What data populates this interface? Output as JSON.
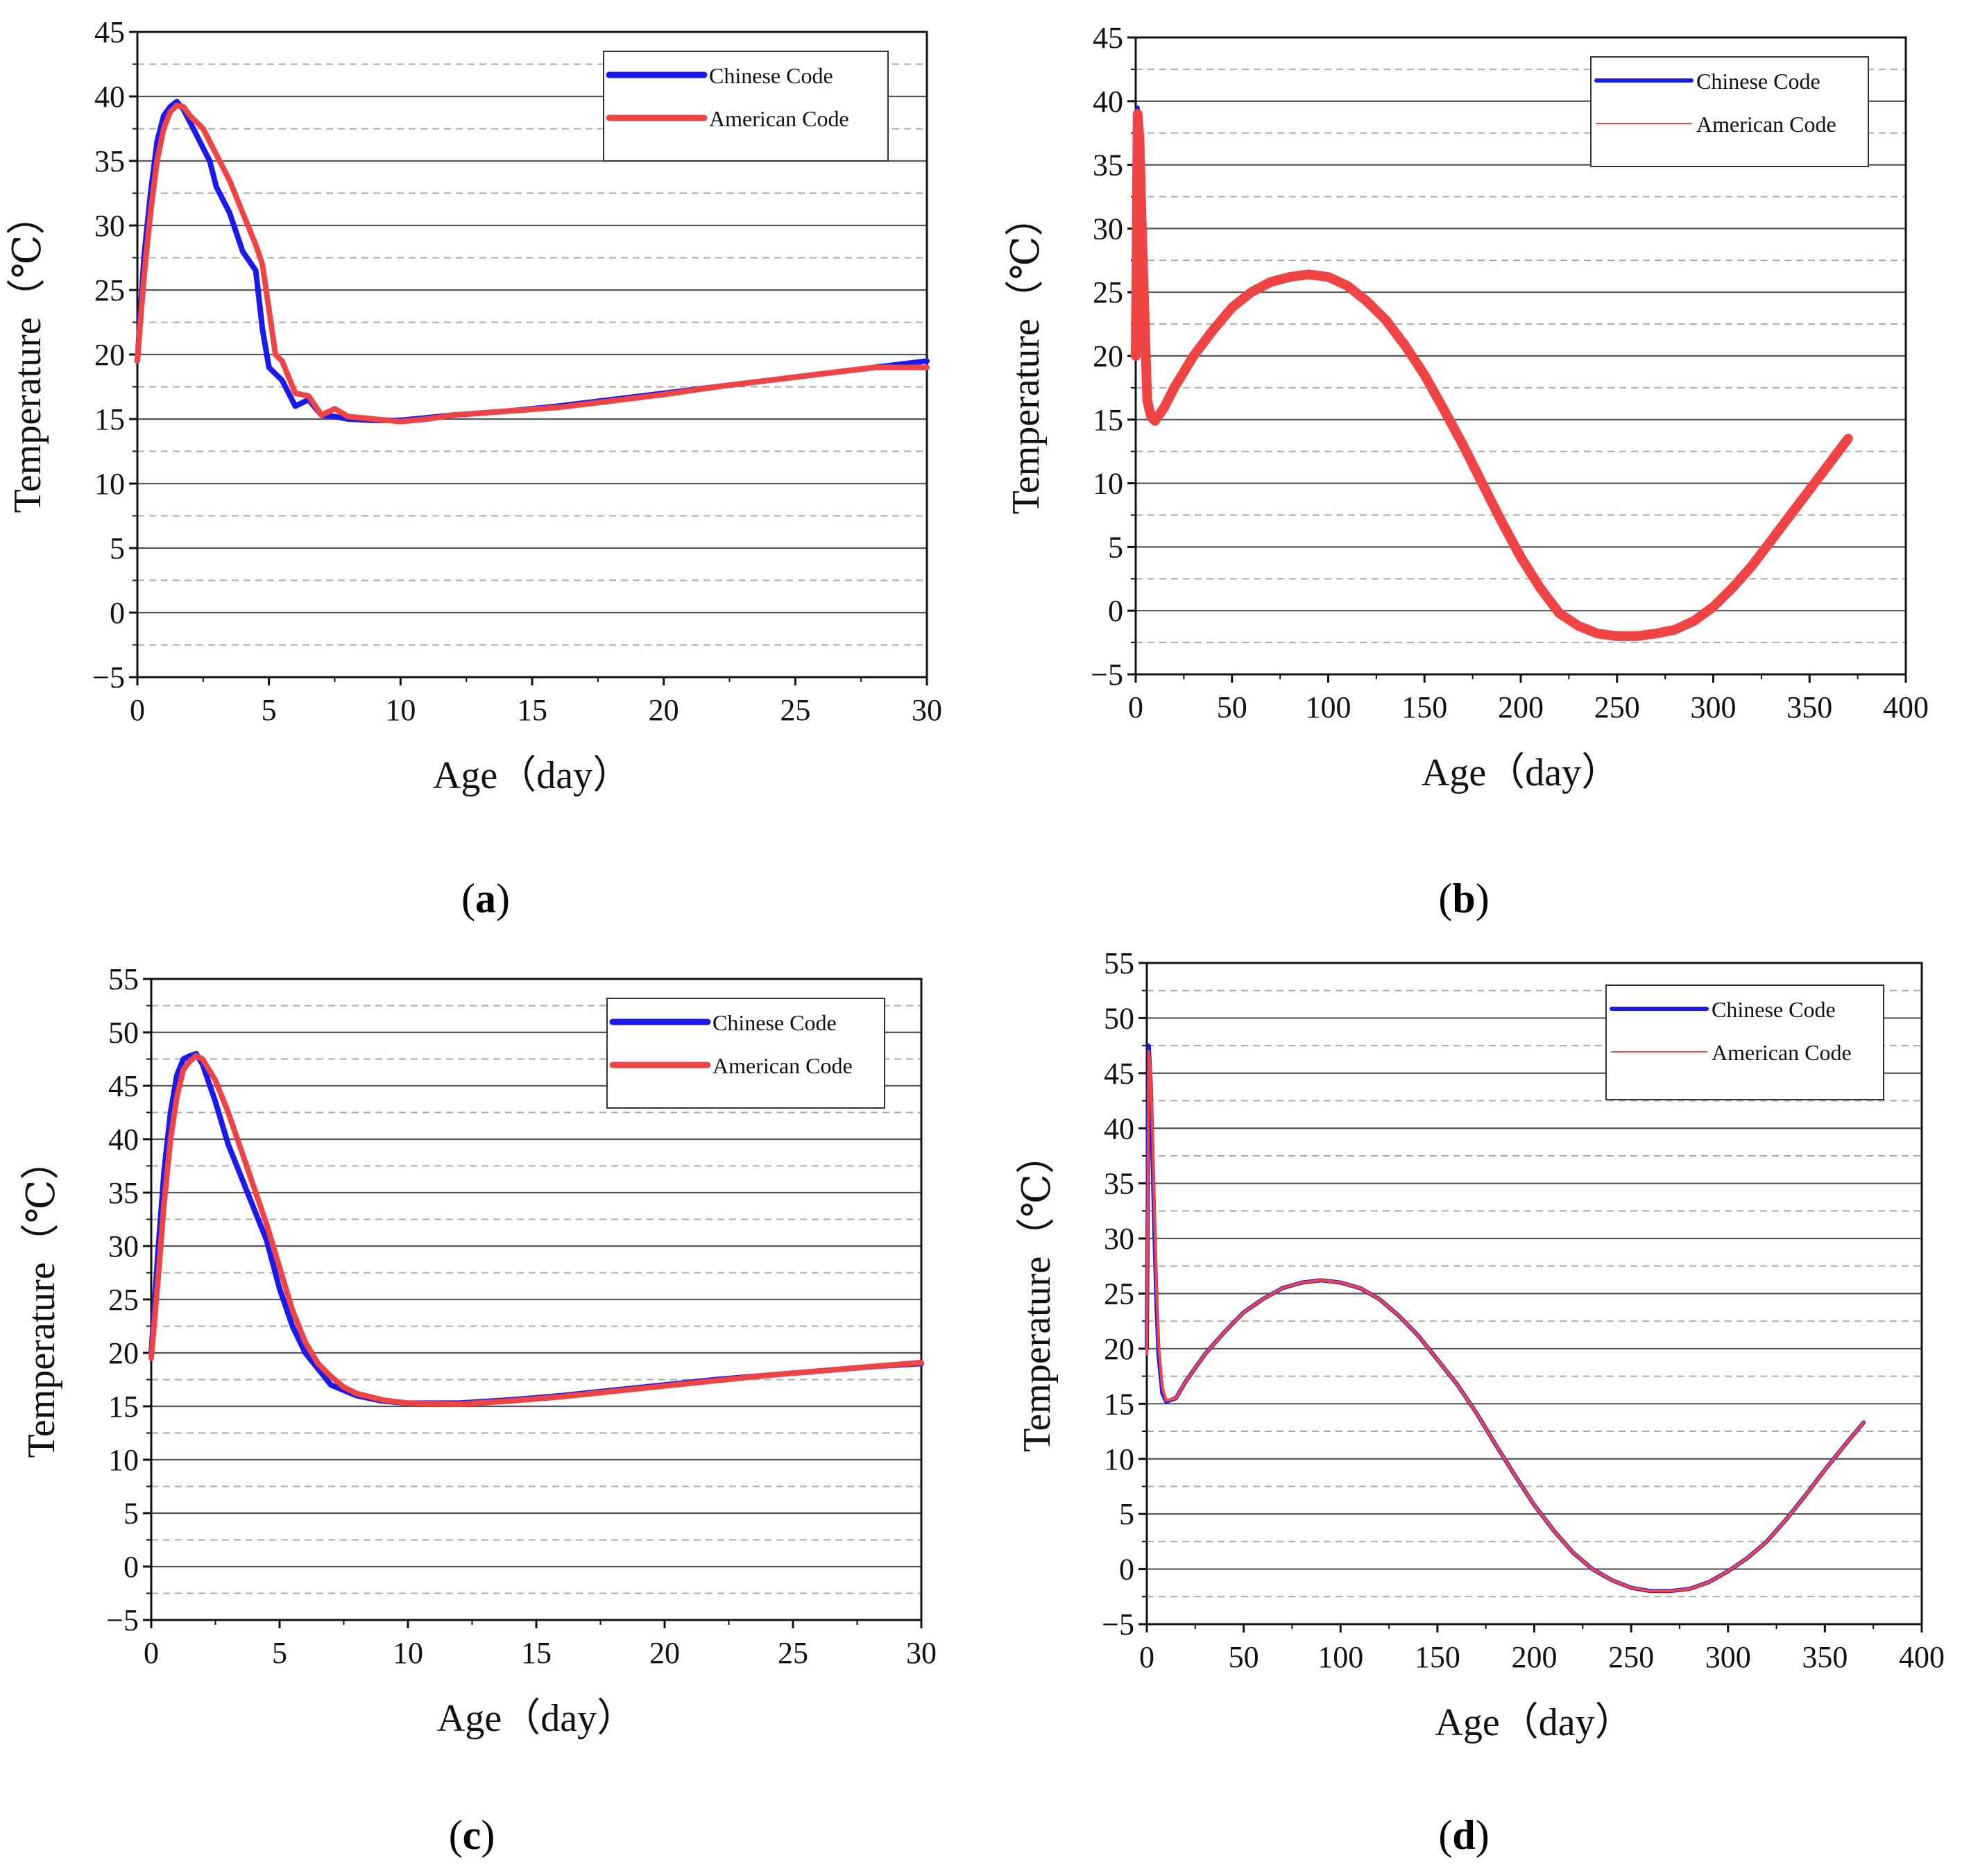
{
  "figure": {
    "colors": {
      "chinese": "#1a1aee",
      "american": "#f04444",
      "grid_solid": "#555555",
      "grid_dashed": "#aaaaaa",
      "axis": "#111111"
    }
  },
  "chart_data": [
    {
      "id": "a",
      "type": "line",
      "panel_label": "a",
      "xlabel": "Age（day）",
      "ylabel": "Temperature（℃）",
      "xlim": [
        0,
        30
      ],
      "ylim": [
        -5,
        45
      ],
      "x_ticks": [
        0,
        5,
        10,
        15,
        20,
        25,
        30
      ],
      "y_ticks": [
        -5,
        0,
        5,
        10,
        15,
        20,
        25,
        30,
        35,
        40,
        45
      ],
      "x_tick_labels": [
        "0",
        "5",
        "10",
        "15",
        "20",
        "25",
        "30"
      ],
      "y_tick_labels": [
        "−5",
        "0",
        "5",
        "10",
        "15",
        "20",
        "25",
        "30",
        "35",
        "40",
        "45"
      ],
      "legend": [
        "Chinese Code",
        "American Code"
      ],
      "legend_position": "top-right",
      "series": [
        {
          "name": "Chinese Code",
          "x": [
            0,
            0.25,
            0.5,
            0.75,
            1.0,
            1.25,
            1.5,
            1.75,
            2.0,
            2.25,
            2.5,
            2.75,
            3.0,
            3.5,
            4.0,
            4.5,
            4.75,
            5.0,
            5.5,
            6.0,
            6.5,
            7.0,
            7.5,
            8.0,
            9.0,
            10.0,
            11.0,
            12.0,
            14.0,
            16.0,
            18.0,
            20.0,
            22.0,
            24.0,
            26.0,
            28.0,
            30.0
          ],
          "y": [
            19.5,
            27.5,
            32.5,
            36.5,
            38.5,
            39.2,
            39.6,
            39.0,
            38.0,
            37.0,
            36.0,
            35.0,
            33.0,
            31.0,
            28.0,
            26.5,
            22.0,
            19.0,
            18.0,
            16.0,
            16.5,
            15.3,
            15.2,
            15.0,
            14.9,
            14.9,
            15.1,
            15.3,
            15.6,
            16.0,
            16.5,
            17.0,
            17.5,
            18.0,
            18.5,
            19.0,
            19.5
          ]
        },
        {
          "name": "American Code",
          "x": [
            0,
            0.25,
            0.5,
            0.75,
            1.0,
            1.25,
            1.5,
            1.75,
            2.0,
            2.5,
            3.0,
            3.5,
            4.0,
            4.5,
            4.75,
            5.0,
            5.25,
            5.5,
            6.0,
            6.5,
            7.0,
            7.5,
            8.0,
            9.0,
            10.0,
            11.0,
            12.0,
            14.0,
            16.0,
            18.0,
            20.0,
            22.0,
            24.0,
            26.0,
            28.0,
            30.0
          ],
          "y": [
            19.5,
            26.0,
            31.0,
            35.0,
            37.5,
            38.8,
            39.3,
            39.2,
            38.5,
            37.5,
            35.5,
            33.5,
            31.0,
            28.5,
            27.0,
            23.5,
            20.0,
            19.5,
            17.0,
            16.8,
            15.3,
            15.8,
            15.2,
            15.0,
            14.8,
            15.0,
            15.3,
            15.6,
            15.9,
            16.4,
            16.9,
            17.5,
            18.0,
            18.5,
            19.0,
            19.0
          ]
        }
      ]
    },
    {
      "id": "b",
      "type": "line",
      "panel_label": "b",
      "xlabel": "Age（day）",
      "ylabel": "Temperature（℃）",
      "xlim": [
        0,
        400
      ],
      "ylim": [
        -5,
        45
      ],
      "x_ticks": [
        0,
        50,
        100,
        150,
        200,
        250,
        300,
        350,
        400
      ],
      "y_ticks": [
        -5,
        0,
        5,
        10,
        15,
        20,
        25,
        30,
        35,
        40,
        45
      ],
      "x_tick_labels": [
        "0",
        "50",
        "100",
        "150",
        "200",
        "250",
        "300",
        "350",
        "400"
      ],
      "y_tick_labels": [
        "−5",
        "0",
        "5",
        "10",
        "15",
        "20",
        "25",
        "30",
        "35",
        "40",
        "45"
      ],
      "legend": [
        "Chinese Code",
        "American Code"
      ],
      "legend_position": "top-right",
      "series": [
        {
          "name": "Chinese Code",
          "x": [
            0,
            1,
            2,
            3,
            4,
            5,
            6,
            8,
            10,
            15,
            20,
            30,
            40,
            50,
            60,
            70,
            80,
            90,
            100,
            110,
            120,
            130,
            140,
            150,
            160,
            170,
            180,
            190,
            200,
            210,
            220,
            230,
            240,
            250,
            260,
            270,
            280,
            290,
            300,
            310,
            320,
            330,
            340,
            350,
            360,
            370
          ],
          "y": [
            20.0,
            39.5,
            36.0,
            30.0,
            25.0,
            20.0,
            16.0,
            15.2,
            15.0,
            16.0,
            17.5,
            20.0,
            22.0,
            23.8,
            25.0,
            25.8,
            26.2,
            26.4,
            26.2,
            25.5,
            24.3,
            22.8,
            20.8,
            18.5,
            15.8,
            13.0,
            10.0,
            7.0,
            4.2,
            1.8,
            -0.2,
            -1.2,
            -1.8,
            -2.0,
            -2.0,
            -1.8,
            -1.5,
            -0.8,
            0.3,
            1.8,
            3.5,
            5.5,
            7.5,
            9.5,
            11.5,
            13.5
          ]
        },
        {
          "name": "American Code",
          "x": [
            0,
            1,
            2,
            3,
            4,
            5,
            6,
            8,
            10,
            15,
            20,
            30,
            40,
            50,
            60,
            70,
            80,
            90,
            100,
            110,
            120,
            130,
            140,
            150,
            160,
            170,
            180,
            190,
            200,
            210,
            220,
            230,
            240,
            250,
            260,
            270,
            280,
            290,
            300,
            310,
            320,
            330,
            340,
            350,
            360,
            370
          ],
          "y": [
            20.0,
            39.0,
            37.0,
            31.0,
            26.0,
            21.0,
            16.5,
            15.2,
            14.9,
            16.0,
            17.5,
            20.0,
            22.0,
            23.8,
            25.0,
            25.8,
            26.2,
            26.4,
            26.2,
            25.5,
            24.3,
            22.8,
            20.8,
            18.5,
            15.8,
            13.0,
            10.0,
            7.0,
            4.2,
            1.8,
            -0.2,
            -1.2,
            -1.8,
            -2.0,
            -2.0,
            -1.8,
            -1.5,
            -0.8,
            0.3,
            1.8,
            3.5,
            5.5,
            7.5,
            9.5,
            11.5,
            13.5
          ]
        }
      ]
    },
    {
      "id": "c",
      "type": "line",
      "panel_label": "c",
      "xlabel": "Age（day）",
      "ylabel": "Temperature（℃）",
      "xlim": [
        0,
        30
      ],
      "ylim": [
        -5,
        55
      ],
      "x_ticks": [
        0,
        5,
        10,
        15,
        20,
        25,
        30
      ],
      "y_ticks": [
        -5,
        0,
        5,
        10,
        15,
        20,
        25,
        30,
        35,
        40,
        45,
        50,
        55
      ],
      "x_tick_labels": [
        "0",
        "5",
        "10",
        "15",
        "20",
        "25",
        "30"
      ],
      "y_tick_labels": [
        "−5",
        "0",
        "5",
        "10",
        "15",
        "20",
        "25",
        "30",
        "35",
        "40",
        "45",
        "50",
        "55"
      ],
      "legend": [
        "Chinese Code",
        "American Code"
      ],
      "legend_position": "top-right",
      "series": [
        {
          "name": "Chinese Code",
          "x": [
            0,
            0.25,
            0.5,
            0.75,
            1.0,
            1.25,
            1.5,
            1.75,
            2.0,
            2.5,
            3.0,
            3.5,
            4.0,
            4.5,
            5.0,
            5.5,
            6.0,
            6.5,
            7.0,
            7.5,
            8.0,
            9.0,
            10.0,
            12.0,
            14.0,
            16.0,
            18.0,
            20.0,
            22.0,
            24.0,
            26.0,
            28.0,
            30.0
          ],
          "y": [
            20.0,
            29.0,
            37.0,
            42.5,
            46.0,
            47.5,
            47.8,
            48.0,
            47.0,
            43.5,
            39.5,
            36.5,
            33.5,
            30.5,
            26.0,
            22.5,
            20.0,
            18.5,
            17.0,
            16.5,
            16.0,
            15.5,
            15.3,
            15.3,
            15.6,
            16.0,
            16.5,
            17.0,
            17.5,
            17.9,
            18.3,
            18.7,
            19.0
          ]
        },
        {
          "name": "American Code",
          "x": [
            0,
            0.25,
            0.5,
            0.75,
            1.0,
            1.25,
            1.5,
            1.75,
            2.0,
            2.5,
            3.0,
            3.5,
            4.0,
            4.5,
            5.0,
            5.5,
            6.0,
            6.5,
            7.0,
            7.5,
            8.0,
            9.0,
            10.0,
            12.0,
            14.0,
            16.0,
            18.0,
            20.0,
            22.0,
            24.0,
            26.0,
            28.0,
            30.0
          ],
          "y": [
            19.5,
            26.5,
            34.0,
            40.0,
            44.0,
            46.5,
            47.3,
            47.8,
            47.5,
            45.5,
            42.5,
            39.0,
            35.5,
            32.0,
            28.0,
            24.0,
            21.0,
            19.0,
            17.8,
            16.8,
            16.2,
            15.6,
            15.3,
            15.2,
            15.5,
            15.9,
            16.4,
            16.9,
            17.4,
            17.9,
            18.3,
            18.7,
            19.1
          ]
        }
      ]
    },
    {
      "id": "d",
      "type": "line",
      "panel_label": "d",
      "xlabel": "Age（day）",
      "ylabel": "Temperature（℃）",
      "xlim": [
        0,
        400
      ],
      "ylim": [
        -5,
        55
      ],
      "x_ticks": [
        0,
        50,
        100,
        150,
        200,
        250,
        300,
        350,
        400
      ],
      "y_ticks": [
        -5,
        0,
        5,
        10,
        15,
        20,
        25,
        30,
        35,
        40,
        45,
        50,
        55
      ],
      "x_tick_labels": [
        "0",
        "50",
        "100",
        "150",
        "200",
        "250",
        "300",
        "350",
        "400"
      ],
      "y_tick_labels": [
        "−5",
        "0",
        "5",
        "10",
        "15",
        "20",
        "25",
        "30",
        "35",
        "40",
        "45",
        "50",
        "55"
      ],
      "legend": [
        "Chinese Code",
        "American Code"
      ],
      "legend_position": "top-right",
      "series": [
        {
          "name": "Chinese Code",
          "x": [
            0,
            1,
            2,
            3,
            4,
            5,
            6,
            8,
            10,
            15,
            20,
            30,
            40,
            50,
            60,
            70,
            80,
            90,
            100,
            110,
            120,
            130,
            140,
            150,
            160,
            170,
            180,
            190,
            200,
            210,
            220,
            230,
            240,
            250,
            260,
            270,
            280,
            290,
            300,
            310,
            320,
            330,
            340,
            350,
            360,
            370
          ],
          "y": [
            20.0,
            47.5,
            44.0,
            37.0,
            30.0,
            24.0,
            19.5,
            16.0,
            15.2,
            15.5,
            17.0,
            19.5,
            21.5,
            23.3,
            24.5,
            25.5,
            26.0,
            26.2,
            26.0,
            25.5,
            24.5,
            23.0,
            21.2,
            19.0,
            16.8,
            14.2,
            11.3,
            8.5,
            5.8,
            3.5,
            1.5,
            0.0,
            -1.0,
            -1.7,
            -2.0,
            -2.0,
            -1.8,
            -1.2,
            -0.2,
            1.0,
            2.5,
            4.5,
            6.7,
            9.0,
            11.2,
            13.3
          ]
        },
        {
          "name": "American Code",
          "x": [
            0,
            1,
            2,
            3,
            4,
            5,
            6,
            8,
            10,
            15,
            20,
            30,
            40,
            50,
            60,
            70,
            80,
            90,
            100,
            110,
            120,
            130,
            140,
            150,
            160,
            170,
            180,
            190,
            200,
            210,
            220,
            230,
            240,
            250,
            260,
            270,
            280,
            290,
            300,
            310,
            320,
            330,
            340,
            350,
            360,
            370
          ],
          "y": [
            19.5,
            47.0,
            45.0,
            39.0,
            32.0,
            25.5,
            20.5,
            16.5,
            15.3,
            15.5,
            17.0,
            19.5,
            21.5,
            23.3,
            24.5,
            25.5,
            26.0,
            26.2,
            26.0,
            25.5,
            24.5,
            23.0,
            21.2,
            19.0,
            16.8,
            14.2,
            11.3,
            8.5,
            5.8,
            3.5,
            1.5,
            0.0,
            -1.0,
            -1.7,
            -2.0,
            -2.0,
            -1.8,
            -1.2,
            -0.2,
            1.0,
            2.5,
            4.5,
            6.7,
            9.0,
            11.2,
            13.3
          ]
        }
      ]
    }
  ]
}
